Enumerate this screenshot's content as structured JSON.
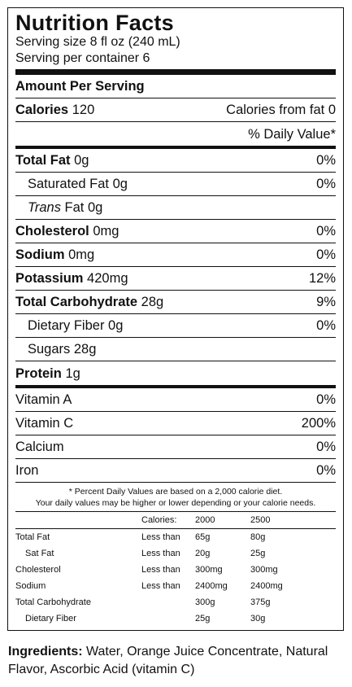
{
  "title": "Nutrition Facts",
  "serving_size": "Serving size 8 fl oz (240 mL)",
  "servings_per_container": "Serving per container 6",
  "amount_per_serving": "Amount Per Serving",
  "calories": {
    "label": "Calories",
    "value": "120",
    "from_fat_label": "Calories from fat",
    "from_fat_value": "0"
  },
  "daily_value_header": "% Daily Value*",
  "nutrients": {
    "total_fat": {
      "label": "Total Fat",
      "amount": "0g",
      "dv": "0%"
    },
    "saturated_fat": {
      "label": "Saturated Fat",
      "amount": "0g",
      "dv": "0%"
    },
    "trans_fat": {
      "label": "Trans",
      "label_suffix": "Fat",
      "amount": "0g"
    },
    "cholesterol": {
      "label": "Cholesterol",
      "amount": "0mg",
      "dv": "0%"
    },
    "sodium": {
      "label": "Sodium",
      "amount": "0mg",
      "dv": "0%"
    },
    "potassium": {
      "label": "Potassium",
      "amount": "420mg",
      "dv": "12%"
    },
    "total_carbohydrate": {
      "label": "Total Carbohydrate",
      "amount": "28g",
      "dv": "9%"
    },
    "dietary_fiber": {
      "label": "Dietary Fiber",
      "amount": "0g",
      "dv": "0%"
    },
    "sugars": {
      "label": "Sugars",
      "amount": "28g"
    },
    "protein": {
      "label": "Protein",
      "amount": "1g"
    }
  },
  "vitamins": [
    {
      "label": "Vitamin A",
      "dv": "0%"
    },
    {
      "label": "Vitamin C",
      "dv": "200%"
    },
    {
      "label": "Calcium",
      "dv": "0%"
    },
    {
      "label": "Iron",
      "dv": "0%"
    }
  ],
  "footnote_line1": "* Percent Daily Values are based on a 2,000 calorie diet.",
  "footnote_line2": "Your daily values may be higher or lower depending or your calorie needs.",
  "reference_table": {
    "header": [
      "",
      "Calories:",
      "2000",
      "2500"
    ],
    "rows": [
      [
        "Total Fat",
        "Less than",
        "65g",
        "80g"
      ],
      [
        "Sat Fat",
        "Less than",
        "20g",
        "25g"
      ],
      [
        "Cholesterol",
        "Less than",
        "300mg",
        "300mg"
      ],
      [
        "Sodium",
        "Less than",
        "2400mg",
        "2400mg"
      ],
      [
        "Total Carbohydrate",
        "",
        "300g",
        "375g"
      ],
      [
        "Dietary Fiber",
        "",
        "25g",
        "30g"
      ]
    ]
  },
  "ingredients": {
    "label": "Ingredients:",
    "text": "Water, Orange Juice Concentrate, Natural Flavor, Ascorbic Acid (vitamin C)"
  }
}
